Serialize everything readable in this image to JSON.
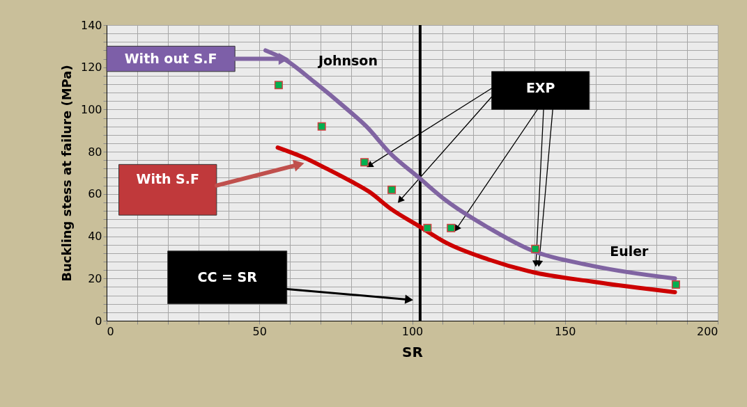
{
  "chart_data": {
    "type": "line",
    "xlabel": "SR",
    "ylabel": "Buckling stess at failure (MPa)",
    "xlim": [
      0,
      200
    ],
    "ylim": [
      0,
      140
    ],
    "xticks": [
      0,
      {
        "value": 10,
        "label": null
      },
      {
        "value": 20,
        "label": null
      },
      {
        "value": 30,
        "label": null
      },
      {
        "value": 40,
        "label": null
      },
      50,
      {
        "value": 60,
        "label": null
      },
      {
        "value": 70,
        "label": null
      },
      {
        "value": 80,
        "label": null
      },
      {
        "value": 90,
        "label": null
      },
      100,
      {
        "value": 110,
        "label": null
      },
      {
        "value": 120,
        "label": null
      },
      {
        "value": 130,
        "label": null
      },
      {
        "value": 140,
        "label": null
      },
      150,
      {
        "value": 160,
        "label": null
      },
      {
        "value": 170,
        "label": null
      },
      {
        "value": 180,
        "label": null
      },
      {
        "value": 190,
        "label": null
      },
      200
    ],
    "yticks": [
      0,
      {
        "value": 4,
        "label": null
      },
      {
        "value": 8,
        "label": null
      },
      {
        "value": 12,
        "label": null
      },
      {
        "value": 16,
        "label": null
      },
      20,
      {
        "value": 24,
        "label": null
      },
      {
        "value": 28,
        "label": null
      },
      {
        "value": 32,
        "label": null
      },
      {
        "value": 36,
        "label": null
      },
      40,
      {
        "value": 44,
        "label": null
      },
      {
        "value": 48,
        "label": null
      },
      {
        "value": 52,
        "label": null
      },
      {
        "value": 56,
        "label": null
      },
      60,
      {
        "value": 64,
        "label": null
      },
      {
        "value": 68,
        "label": null
      },
      {
        "value": 72,
        "label": null
      },
      {
        "value": 76,
        "label": null
      },
      80,
      {
        "value": 84,
        "label": null
      },
      {
        "value": 88,
        "label": null
      },
      {
        "value": 92,
        "label": null
      },
      {
        "value": 96,
        "label": null
      },
      100,
      {
        "value": 104,
        "label": null
      },
      {
        "value": 108,
        "label": null
      },
      {
        "value": 112,
        "label": null
      },
      {
        "value": 116,
        "label": null
      },
      120,
      {
        "value": 124,
        "label": null
      },
      {
        "value": 128,
        "label": null
      },
      {
        "value": 132,
        "label": null
      },
      {
        "value": 136,
        "label": null
      },
      140
    ],
    "grid": true,
    "line_style": "solid",
    "series": [
      {
        "color": "#8064a2",
        "x": [
          52,
          58,
          68,
          78,
          85,
          93,
          102,
          111,
          125,
          138,
          159,
          186
        ],
        "values": [
          128,
          124,
          113,
          101,
          92,
          79,
          68,
          57,
          44,
          34,
          26,
          20
        ]
      },
      {
        "color": "#cc0000",
        "x": [
          56,
          65,
          72,
          80,
          86,
          93,
          102,
          111,
          125,
          138,
          159,
          186
        ],
        "values": [
          82,
          77,
          72,
          66,
          61,
          53,
          45,
          37,
          29,
          23.5,
          18.5,
          13.5
        ]
      },
      {
        "type": "scatter",
        "color": "#00b050",
        "marker": "square",
        "x": [
          56.3,
          70.4,
          84.4,
          93.3,
          105,
          112.7,
          140.3,
          186.3
        ],
        "values": [
          111.6,
          92,
          75,
          62,
          43.9,
          43.9,
          34,
          17.1
        ]
      }
    ],
    "ref_lines": [
      {
        "axis": "x",
        "value": 102.6,
        "color": "#000000"
      }
    ],
    "annotations": [
      "With out  S.F",
      "Johnson",
      {
        "text": "EXP",
        "x": 114.5,
        "y": 43.5
      },
      "With  S.F",
      "CC = SR",
      "Euler"
    ]
  }
}
